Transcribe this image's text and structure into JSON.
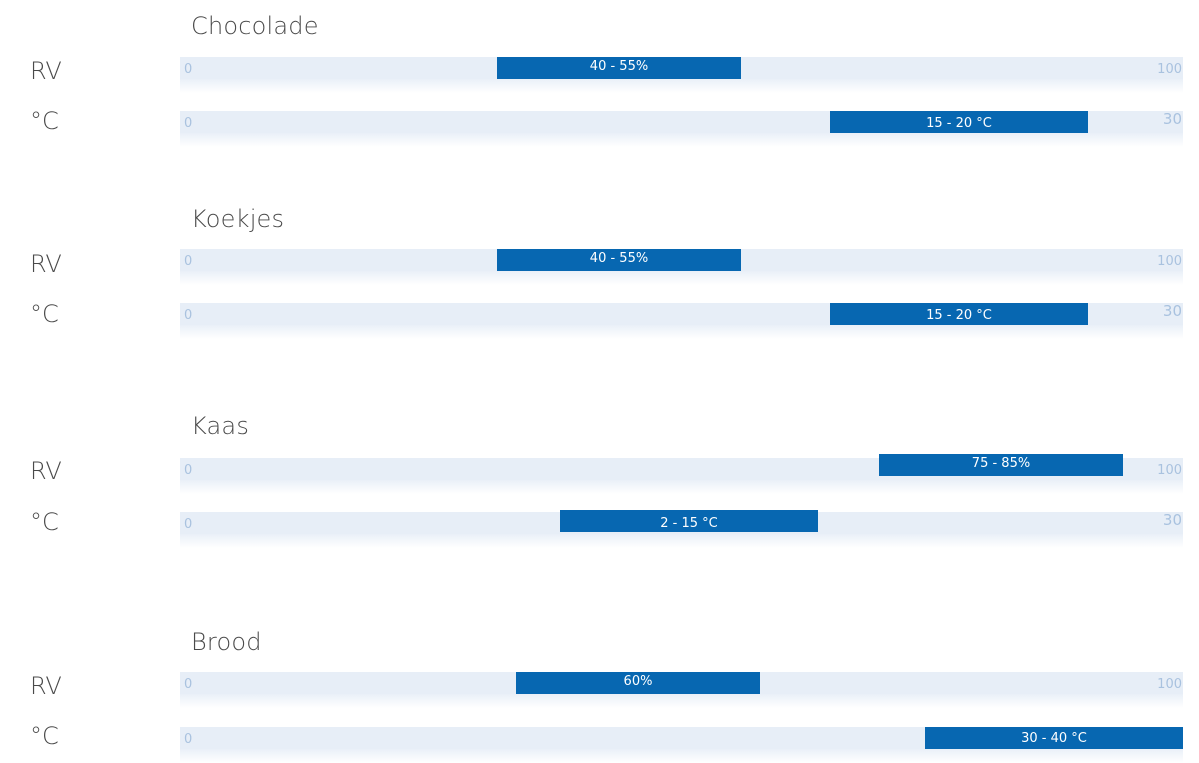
{
  "colors": {
    "bar": "#0767b1",
    "track": "#e7eef7",
    "tick": "#a9c2df",
    "text": "#4a4a4a"
  },
  "chart_data": [
    {
      "type": "bar",
      "title": "Chocolade",
      "rows": [
        {
          "label": "RV",
          "min": "0",
          "max": "100",
          "range": [
            40,
            55
          ],
          "value_label": "40 - 55%"
        },
        {
          "label": "°C",
          "min": "0",
          "max": "30",
          "range": [
            15,
            20
          ],
          "value_label": "15 - 20 °C"
        }
      ]
    },
    {
      "type": "bar",
      "title": "Koekjes",
      "rows": [
        {
          "label": "RV",
          "min": "0",
          "max": "100",
          "range": [
            40,
            55
          ],
          "value_label": "40 - 55%"
        },
        {
          "label": "°C",
          "min": "0",
          "max": "30",
          "range": [
            15,
            20
          ],
          "value_label": "15 - 20 °C"
        }
      ]
    },
    {
      "type": "bar",
      "title": "Kaas",
      "rows": [
        {
          "label": "RV",
          "min": "0",
          "max": "100",
          "range": [
            75,
            85
          ],
          "value_label": "75 - 85%"
        },
        {
          "label": "°C",
          "min": "0",
          "max": "30",
          "range": [
            2,
            15
          ],
          "value_label": "2 - 15 °C"
        }
      ]
    },
    {
      "type": "bar",
      "title": "Brood",
      "rows": [
        {
          "label": "RV",
          "min": "0",
          "max": "100",
          "range": [
            60,
            60
          ],
          "value_label": "60%"
        },
        {
          "label": "°C",
          "min": "0",
          "max": "30",
          "range": [
            30,
            40
          ],
          "value_label": "30  - 40 °C"
        }
      ]
    }
  ]
}
